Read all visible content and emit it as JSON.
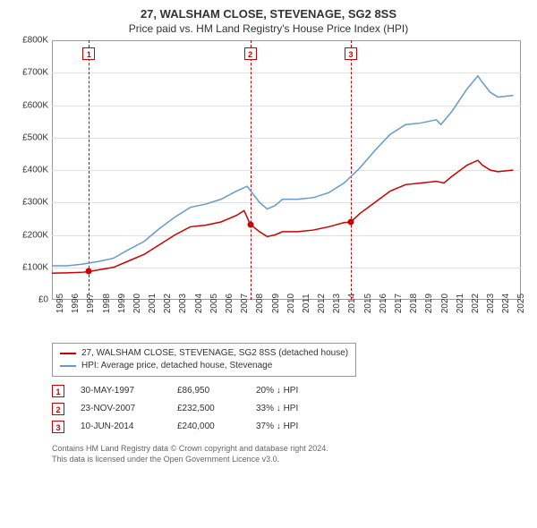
{
  "title": {
    "line1": "27, WALSHAM CLOSE, STEVENAGE, SG2 8SS",
    "line2": "Price paid vs. HM Land Registry's House Price Index (HPI)"
  },
  "chart": {
    "type": "line",
    "plot_bg": "#ffffff",
    "grid_color": "#e0e0e0",
    "border_color": "#999999",
    "x_domain": [
      1995,
      2025.5
    ],
    "y_domain": [
      0,
      800000
    ],
    "y_ticks": [
      0,
      100000,
      200000,
      300000,
      400000,
      500000,
      600000,
      700000,
      800000
    ],
    "y_tick_labels": [
      "£0",
      "£100K",
      "£200K",
      "£300K",
      "£400K",
      "£500K",
      "£600K",
      "£700K",
      "£800K"
    ],
    "x_ticks": [
      1995,
      1996,
      1997,
      1998,
      1999,
      2000,
      2001,
      2002,
      2003,
      2004,
      2005,
      2006,
      2007,
      2008,
      2009,
      2010,
      2011,
      2012,
      2013,
      2014,
      2015,
      2016,
      2017,
      2018,
      2019,
      2020,
      2021,
      2022,
      2023,
      2024,
      2025
    ],
    "x_tick_labels": [
      "1995",
      "1996",
      "1997",
      "1998",
      "1999",
      "2000",
      "2001",
      "2002",
      "2003",
      "2004",
      "2005",
      "2006",
      "2007",
      "2008",
      "2009",
      "2010",
      "2011",
      "2012",
      "2013",
      "2014",
      "2015",
      "2016",
      "2017",
      "2018",
      "2019",
      "2020",
      "2021",
      "2022",
      "2023",
      "2024",
      "2025"
    ],
    "series": [
      {
        "id": "property",
        "label": "27, WALSHAM CLOSE, STEVENAGE, SG2 8SS (detached house)",
        "color": "#cc0000",
        "line_width": 1.5,
        "data": [
          [
            1995.0,
            82000
          ],
          [
            1996.0,
            83000
          ],
          [
            1997.0,
            85000
          ],
          [
            1997.41,
            86950
          ],
          [
            1998.0,
            92000
          ],
          [
            1999.0,
            100000
          ],
          [
            2000.0,
            120000
          ],
          [
            2001.0,
            140000
          ],
          [
            2002.0,
            170000
          ],
          [
            2003.0,
            200000
          ],
          [
            2004.0,
            225000
          ],
          [
            2005.0,
            230000
          ],
          [
            2006.0,
            240000
          ],
          [
            2007.0,
            260000
          ],
          [
            2007.5,
            275000
          ],
          [
            2007.9,
            232500
          ],
          [
            2008.5,
            210000
          ],
          [
            2009.0,
            195000
          ],
          [
            2009.5,
            200000
          ],
          [
            2010.0,
            210000
          ],
          [
            2011.0,
            210000
          ],
          [
            2012.0,
            215000
          ],
          [
            2013.0,
            225000
          ],
          [
            2014.0,
            238000
          ],
          [
            2014.44,
            240000
          ],
          [
            2015.0,
            265000
          ],
          [
            2016.0,
            300000
          ],
          [
            2017.0,
            335000
          ],
          [
            2018.0,
            355000
          ],
          [
            2019.0,
            360000
          ],
          [
            2020.0,
            365000
          ],
          [
            2020.5,
            360000
          ],
          [
            2021.0,
            380000
          ],
          [
            2022.0,
            415000
          ],
          [
            2022.7,
            430000
          ],
          [
            2023.0,
            415000
          ],
          [
            2023.5,
            400000
          ],
          [
            2024.0,
            395000
          ],
          [
            2025.0,
            400000
          ]
        ]
      },
      {
        "id": "hpi",
        "label": "HPI: Average price, detached house, Stevenage",
        "color": "#6699cc",
        "line_width": 1.5,
        "data": [
          [
            1995.0,
            105000
          ],
          [
            1996.0,
            105000
          ],
          [
            1997.0,
            110000
          ],
          [
            1998.0,
            118000
          ],
          [
            1999.0,
            128000
          ],
          [
            2000.0,
            155000
          ],
          [
            2001.0,
            180000
          ],
          [
            2002.0,
            220000
          ],
          [
            2003.0,
            255000
          ],
          [
            2004.0,
            285000
          ],
          [
            2005.0,
            295000
          ],
          [
            2006.0,
            310000
          ],
          [
            2007.0,
            335000
          ],
          [
            2007.7,
            350000
          ],
          [
            2008.5,
            300000
          ],
          [
            2009.0,
            280000
          ],
          [
            2009.5,
            290000
          ],
          [
            2010.0,
            310000
          ],
          [
            2011.0,
            310000
          ],
          [
            2012.0,
            315000
          ],
          [
            2013.0,
            330000
          ],
          [
            2014.0,
            360000
          ],
          [
            2015.0,
            405000
          ],
          [
            2016.0,
            460000
          ],
          [
            2017.0,
            510000
          ],
          [
            2018.0,
            540000
          ],
          [
            2019.0,
            545000
          ],
          [
            2020.0,
            555000
          ],
          [
            2020.3,
            540000
          ],
          [
            2021.0,
            580000
          ],
          [
            2022.0,
            650000
          ],
          [
            2022.7,
            690000
          ],
          [
            2023.0,
            670000
          ],
          [
            2023.5,
            640000
          ],
          [
            2024.0,
            625000
          ],
          [
            2025.0,
            630000
          ]
        ]
      }
    ],
    "vertical_markers": [
      {
        "label": "1",
        "x": 1997.41
      },
      {
        "label": "2",
        "x": 2007.9
      },
      {
        "label": "3",
        "x": 2014.44
      }
    ],
    "sale_points": [
      {
        "x": 1997.41,
        "y": 86950
      },
      {
        "x": 2007.9,
        "y": 232500
      },
      {
        "x": 2014.44,
        "y": 240000
      }
    ],
    "marker_color": "#cc0000",
    "label_fontsize": 10
  },
  "legend": {
    "items": [
      {
        "color": "#cc0000",
        "label": "27, WALSHAM CLOSE, STEVENAGE, SG2 8SS (detached house)"
      },
      {
        "color": "#6699cc",
        "label": "HPI: Average price, detached house, Stevenage"
      }
    ]
  },
  "transactions": [
    {
      "marker": "1",
      "date": "30-MAY-1997",
      "price": "£86,950",
      "diff": "20% ↓ HPI"
    },
    {
      "marker": "2",
      "date": "23-NOV-2007",
      "price": "£232,500",
      "diff": "33% ↓ HPI"
    },
    {
      "marker": "3",
      "date": "10-JUN-2014",
      "price": "£240,000",
      "diff": "37% ↓ HPI"
    }
  ],
  "attribution": {
    "line1": "Contains HM Land Registry data © Crown copyright and database right 2024.",
    "line2": "This data is licensed under the Open Government Licence v3.0."
  }
}
